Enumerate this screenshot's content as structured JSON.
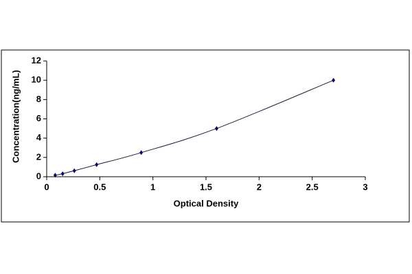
{
  "chart_data": {
    "type": "scatter",
    "x_label": "Optical Density",
    "y_label": "Concentration(ng/mL)",
    "x": [
      0.08,
      0.15,
      0.26,
      0.47,
      0.89,
      1.6,
      2.7
    ],
    "values": [
      0.156,
      0.312,
      0.625,
      1.25,
      2.5,
      5,
      10
    ],
    "color": "#0a0a6a",
    "line_color": "#1a1a3a",
    "trendline": true,
    "xlim": [
      0,
      3
    ],
    "xticks": [
      0,
      0.5,
      1,
      1.5,
      2,
      2.5,
      3
    ],
    "ylim": [
      0,
      12
    ],
    "yticks": [
      0,
      2,
      4,
      6,
      8,
      10,
      12
    ],
    "grid": false
  }
}
